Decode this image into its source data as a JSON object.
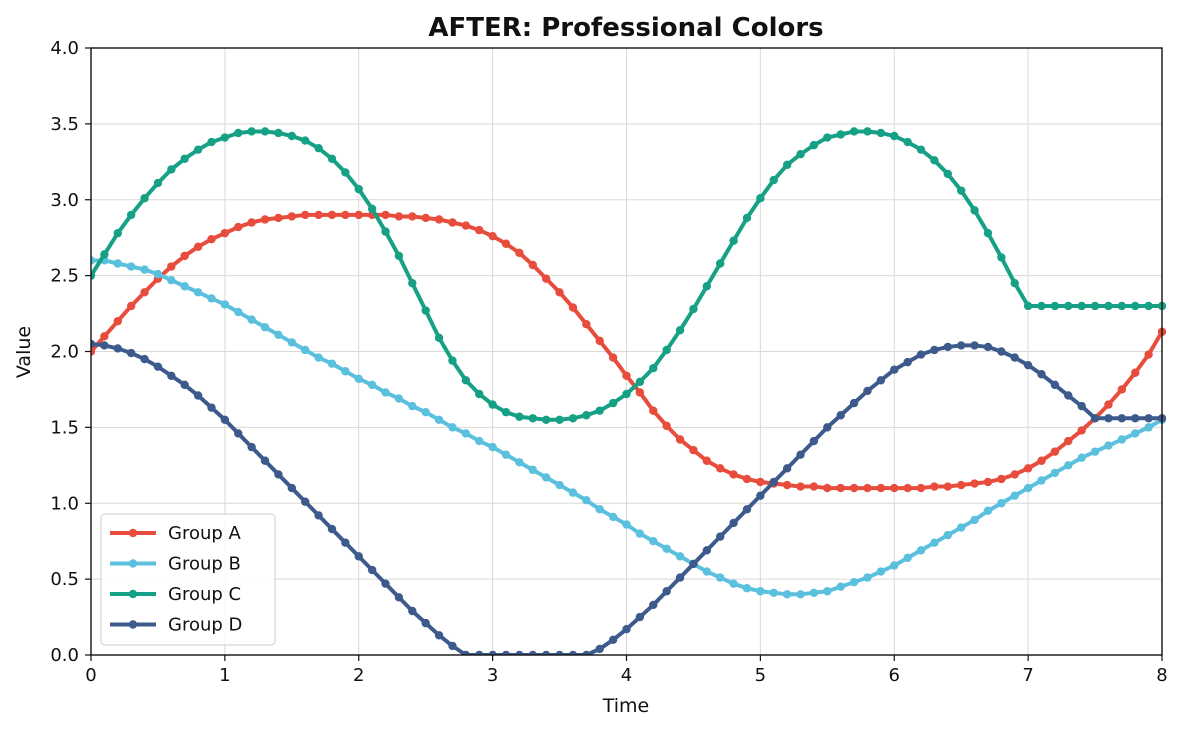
{
  "chart_data": {
    "type": "line",
    "title": "AFTER: Professional Colors",
    "xlabel": "Time",
    "ylabel": "Value",
    "xlim": [
      0,
      8
    ],
    "ylim": [
      0,
      4
    ],
    "xticks": [
      0,
      1,
      2,
      3,
      4,
      5,
      6,
      7,
      8
    ],
    "xtick_labels": [
      "0",
      "1",
      "2",
      "3",
      "4",
      "5",
      "6",
      "7",
      "8"
    ],
    "yticks": [
      0,
      0.5,
      1,
      1.5,
      2,
      2.5,
      3,
      3.5,
      4
    ],
    "ytick_labels": [
      "0.0",
      "0.5",
      "1.0",
      "1.5",
      "2.0",
      "2.5",
      "3.0",
      "3.5",
      "4.0"
    ],
    "grid": true,
    "legend_position": "bottom-left",
    "x": [
      0,
      0.1,
      0.2,
      0.3,
      0.4,
      0.5,
      0.6,
      0.7,
      0.8,
      0.9,
      1.0,
      1.1,
      1.2,
      1.3,
      1.4,
      1.5,
      1.6,
      1.7,
      1.8,
      1.9,
      2.0,
      2.1,
      2.2,
      2.3,
      2.4,
      2.5,
      2.6,
      2.7,
      2.8,
      2.9,
      3.0,
      3.1,
      3.2,
      3.3,
      3.4,
      3.5,
      3.6,
      3.7,
      3.8,
      3.9,
      4.0,
      4.1,
      4.2,
      4.3,
      4.4,
      4.5,
      4.6,
      4.7,
      4.8,
      4.9,
      5.0,
      5.1,
      5.2,
      5.3,
      5.4,
      5.5,
      5.6,
      5.7,
      5.8,
      5.9,
      6.0,
      6.1,
      6.2,
      6.3,
      6.4,
      6.5,
      6.6,
      6.7,
      6.8,
      6.9,
      7.0,
      7.1,
      7.2,
      7.3,
      7.4,
      7.5,
      7.6,
      7.7,
      7.8,
      7.9,
      8.0
    ],
    "series": [
      {
        "name": "Group A",
        "color": "#E74C3C",
        "values": [
          2.0,
          2.1,
          2.2,
          2.3,
          2.39,
          2.48,
          2.56,
          2.63,
          2.69,
          2.74,
          2.78,
          2.82,
          2.85,
          2.87,
          2.88,
          2.89,
          2.9,
          2.9,
          2.9,
          2.9,
          2.9,
          2.9,
          2.9,
          2.89,
          2.89,
          2.88,
          2.87,
          2.85,
          2.83,
          2.8,
          2.76,
          2.71,
          2.65,
          2.57,
          2.48,
          2.39,
          2.29,
          2.18,
          2.07,
          1.96,
          1.84,
          1.73,
          1.61,
          1.51,
          1.42,
          1.35,
          1.28,
          1.23,
          1.19,
          1.16,
          1.14,
          1.13,
          1.12,
          1.11,
          1.11,
          1.1,
          1.1,
          1.1,
          1.1,
          1.1,
          1.1,
          1.1,
          1.1,
          1.11,
          1.11,
          1.12,
          1.13,
          1.14,
          1.16,
          1.19,
          1.23,
          1.28,
          1.34,
          1.41,
          1.48,
          1.56,
          1.65,
          1.75,
          1.86,
          1.98,
          2.13
        ]
      },
      {
        "name": "Group B",
        "color": "#5BC0DE",
        "values": [
          2.6,
          2.6,
          2.58,
          2.56,
          2.54,
          2.51,
          2.47,
          2.43,
          2.39,
          2.35,
          2.31,
          2.26,
          2.21,
          2.16,
          2.11,
          2.06,
          2.01,
          1.96,
          1.92,
          1.87,
          1.82,
          1.78,
          1.73,
          1.69,
          1.64,
          1.6,
          1.55,
          1.5,
          1.46,
          1.41,
          1.37,
          1.32,
          1.27,
          1.22,
          1.17,
          1.12,
          1.07,
          1.02,
          0.96,
          0.91,
          0.86,
          0.8,
          0.75,
          0.7,
          0.65,
          0.6,
          0.55,
          0.51,
          0.47,
          0.44,
          0.42,
          0.41,
          0.4,
          0.4,
          0.41,
          0.42,
          0.45,
          0.48,
          0.51,
          0.55,
          0.59,
          0.64,
          0.69,
          0.74,
          0.79,
          0.84,
          0.89,
          0.95,
          1.0,
          1.05,
          1.1,
          1.15,
          1.2,
          1.25,
          1.3,
          1.34,
          1.38,
          1.42,
          1.46,
          1.5,
          1.55
        ]
      },
      {
        "name": "Group C",
        "color": "#16A085",
        "values": [
          2.5,
          2.64,
          2.78,
          2.9,
          3.01,
          3.11,
          3.2,
          3.27,
          3.33,
          3.38,
          3.41,
          3.44,
          3.45,
          3.45,
          3.44,
          3.42,
          3.39,
          3.34,
          3.27,
          3.18,
          3.07,
          2.94,
          2.79,
          2.63,
          2.45,
          2.27,
          2.09,
          1.94,
          1.81,
          1.72,
          1.65,
          1.6,
          1.57,
          1.56,
          1.55,
          1.55,
          1.56,
          1.58,
          1.61,
          1.66,
          1.72,
          1.8,
          1.89,
          2.01,
          2.14,
          2.28,
          2.43,
          2.58,
          2.73,
          2.88,
          3.01,
          3.13,
          3.23,
          3.3,
          3.36,
          3.41,
          3.43,
          3.45,
          3.45,
          3.44,
          3.42,
          3.38,
          3.33,
          3.26,
          3.17,
          3.06,
          2.93,
          2.78,
          2.62,
          2.45,
          2.3,
          2.3,
          2.3,
          2.3,
          2.3,
          2.3,
          2.3,
          2.3,
          2.3,
          2.3,
          2.3
        ]
      },
      {
        "name": "Group D",
        "color": "#3D5A8C",
        "values": [
          2.05,
          2.04,
          2.02,
          1.99,
          1.95,
          1.9,
          1.84,
          1.78,
          1.71,
          1.63,
          1.55,
          1.46,
          1.37,
          1.28,
          1.19,
          1.1,
          1.01,
          0.92,
          0.83,
          0.74,
          0.65,
          0.56,
          0.47,
          0.38,
          0.29,
          0.21,
          0.13,
          0.06,
          0.0,
          0.0,
          0.0,
          0.0,
          0.0,
          0.0,
          0.0,
          0.0,
          0.0,
          0.0,
          0.04,
          0.1,
          0.17,
          0.25,
          0.33,
          0.42,
          0.51,
          0.6,
          0.69,
          0.78,
          0.87,
          0.96,
          1.05,
          1.14,
          1.23,
          1.32,
          1.41,
          1.5,
          1.58,
          1.66,
          1.74,
          1.81,
          1.88,
          1.93,
          1.98,
          2.01,
          2.03,
          2.04,
          2.04,
          2.03,
          2.0,
          1.96,
          1.91,
          1.85,
          1.78,
          1.71,
          1.64,
          1.56,
          1.56,
          1.56,
          1.56,
          1.56,
          1.56
        ]
      }
    ]
  }
}
